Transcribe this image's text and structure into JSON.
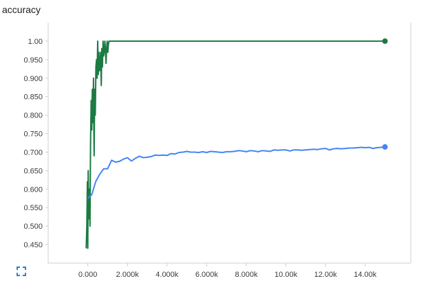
{
  "title": "accuracy",
  "controls": {
    "expand_icon": "fullscreen-icon"
  },
  "colors": {
    "series_green": "#1b7b43",
    "series_blue": "#4285f4",
    "axis": "#cfcfcf",
    "text": "#3a3a3a"
  },
  "chart_data": {
    "type": "line",
    "title": "accuracy",
    "xlabel": "",
    "ylabel": "",
    "xlim": [
      -2000,
      16300
    ],
    "ylim": [
      0.4,
      1.05
    ],
    "x_ticks": [
      0,
      2000,
      4000,
      6000,
      8000,
      10000,
      12000,
      14000
    ],
    "x_tick_labels": [
      "0.000",
      "2.000k",
      "4.000k",
      "6.000k",
      "8.000k",
      "10.00k",
      "12.00k",
      "14.00k"
    ],
    "y_ticks": [
      0.45,
      0.5,
      0.55,
      0.6,
      0.65,
      0.7,
      0.75,
      0.8,
      0.85,
      0.9,
      0.95,
      1.0
    ],
    "y_tick_labels": [
      "0.450",
      "0.500",
      "0.550",
      "0.600",
      "0.650",
      "0.700",
      "0.750",
      "0.800",
      "0.850",
      "0.900",
      "0.950",
      "1.00"
    ],
    "grid": false,
    "series": [
      {
        "color": "#1b7b43",
        "x": [
          -80,
          -50,
          -20,
          0,
          20,
          50,
          80,
          110,
          140,
          170,
          200,
          230,
          260,
          290,
          320,
          350,
          380,
          410,
          440,
          470,
          500,
          530,
          560,
          590,
          620,
          650,
          680,
          710,
          740,
          770,
          800,
          830,
          860,
          890,
          920,
          950,
          980,
          1010,
          1040,
          1070,
          1100,
          1130,
          1160,
          1200,
          1500,
          3000,
          5000,
          7000,
          9000,
          11000,
          13000,
          15000
        ],
        "y": [
          0.44,
          0.5,
          0.62,
          0.44,
          0.65,
          0.52,
          0.6,
          0.5,
          0.72,
          0.84,
          0.76,
          0.87,
          0.78,
          0.9,
          0.69,
          0.87,
          0.8,
          0.93,
          0.95,
          0.9,
          1.0,
          0.91,
          0.97,
          0.92,
          0.94,
          0.97,
          0.88,
          0.98,
          0.93,
          1.0,
          0.96,
          0.97,
          1.0,
          0.98,
          0.94,
          0.98,
          1.0,
          0.97,
          0.99,
          1.0,
          1.0,
          1.0,
          1.0,
          1.0,
          1.0,
          1.0,
          1.0,
          1.0,
          1.0,
          1.0,
          1.0,
          1.0
        ],
        "end_marker": true
      },
      {
        "color": "#4285f4",
        "x": [
          0,
          100,
          200,
          400,
          600,
          800,
          1000,
          1200,
          1400,
          1600,
          1800,
          2000,
          2200,
          2400,
          2600,
          2800,
          3000,
          3200,
          3400,
          3600,
          3800,
          4000,
          4200,
          4400,
          4600,
          4800,
          5000,
          5200,
          5400,
          5600,
          5800,
          6000,
          6200,
          6400,
          6600,
          6800,
          7000,
          7200,
          7400,
          7600,
          7800,
          8000,
          8200,
          8400,
          8600,
          8800,
          9000,
          9200,
          9400,
          9600,
          9800,
          10000,
          10200,
          10400,
          10600,
          10800,
          11000,
          11200,
          11400,
          11600,
          11800,
          12000,
          12200,
          12400,
          12600,
          12800,
          13000,
          13200,
          13400,
          13600,
          13800,
          14000,
          14200,
          14400,
          14600,
          14800,
          15000
        ],
        "y": [
          0.575,
          0.58,
          0.585,
          0.62,
          0.64,
          0.655,
          0.655,
          0.678,
          0.673,
          0.675,
          0.681,
          0.685,
          0.676,
          0.683,
          0.689,
          0.685,
          0.686,
          0.688,
          0.692,
          0.691,
          0.692,
          0.691,
          0.696,
          0.695,
          0.699,
          0.7,
          0.702,
          0.7,
          0.7,
          0.699,
          0.701,
          0.699,
          0.702,
          0.701,
          0.7,
          0.699,
          0.701,
          0.701,
          0.702,
          0.704,
          0.703,
          0.701,
          0.704,
          0.703,
          0.701,
          0.704,
          0.703,
          0.702,
          0.706,
          0.705,
          0.706,
          0.706,
          0.703,
          0.706,
          0.706,
          0.705,
          0.706,
          0.707,
          0.708,
          0.707,
          0.709,
          0.71,
          0.706,
          0.709,
          0.71,
          0.709,
          0.71,
          0.711,
          0.711,
          0.712,
          0.713,
          0.712,
          0.713,
          0.71,
          0.712,
          0.713,
          0.714
        ],
        "end_marker": true
      }
    ]
  }
}
